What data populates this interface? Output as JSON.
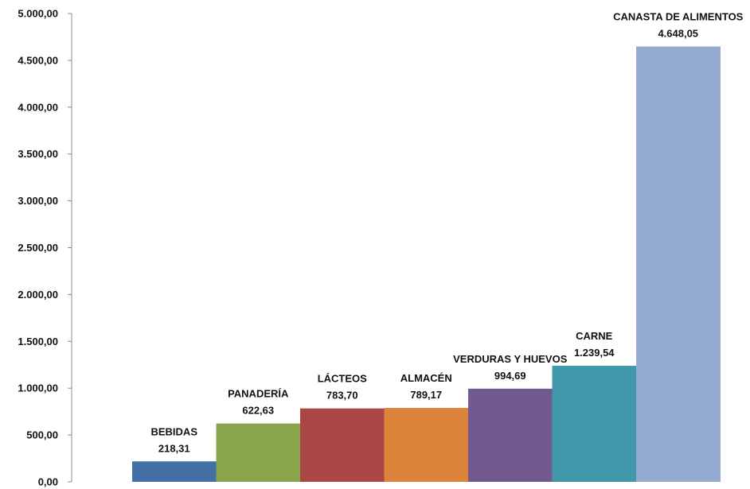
{
  "chart_data": {
    "type": "bar",
    "categories": [
      "BEBIDAS",
      "PANADERÍA",
      "LÁCTEOS",
      "ALMACÉN",
      "VERDURAS Y HUEVOS",
      "CARNE",
      "CANASTA DE ALIMENTOS"
    ],
    "values": [
      218.31,
      622.63,
      783.7,
      789.17,
      994.69,
      1239.54,
      4648.05
    ],
    "value_labels": [
      "218,31",
      "622,63",
      "783,70",
      "789,17",
      "994,69",
      "1.239,54",
      "4.648,05"
    ],
    "colors": [
      "#4470a8",
      "#89a64c",
      "#aa4644",
      "#dc853a",
      "#725a8e",
      "#4298ab",
      "#94abd2"
    ],
    "ylim": [
      0,
      5000
    ],
    "yticks": [
      "0,00",
      "500,00",
      "1.000,00",
      "1.500,00",
      "2.000,00",
      "2.500,00",
      "3.000,00",
      "3.500,00",
      "4.000,00",
      "4.500,00",
      "5.000,00"
    ],
    "title": "",
    "xlabel": "",
    "ylabel": "",
    "grid": false,
    "legend": "none"
  }
}
